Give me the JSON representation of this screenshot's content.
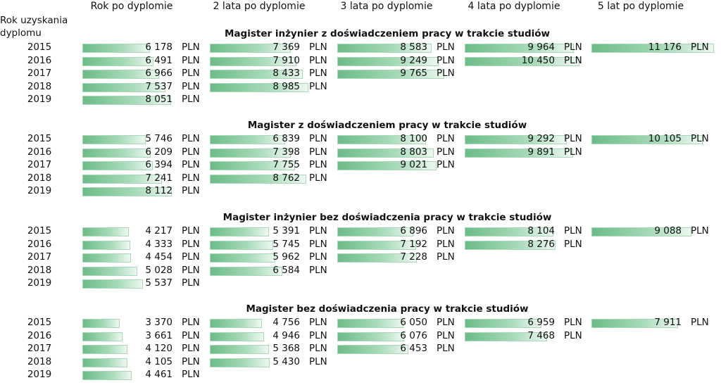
{
  "chart_data": {
    "type": "bar",
    "orientation": "horizontal",
    "row_header": "Rok uzyskania dyplomu",
    "columns": [
      "Rok po dyplomie",
      "2 lata po dyplomie",
      "3 lata po dyplomie",
      "4 lata po dyplomie",
      "5 lat po dyplomie"
    ],
    "years": [
      "2015",
      "2016",
      "2017",
      "2018",
      "2019"
    ],
    "unit": "PLN",
    "bar_color": "#6cbc88",
    "sections": [
      {
        "title": "Magister inżynier z doświadczeniem pracy w trakcie studiów",
        "values": [
          [
            6178,
            7369,
            8583,
            9964,
            11176
          ],
          [
            6491,
            7910,
            9249,
            10450,
            null
          ],
          [
            6966,
            8433,
            9765,
            null,
            null
          ],
          [
            7537,
            8985,
            null,
            null,
            null
          ],
          [
            8051,
            null,
            null,
            null,
            null
          ]
        ]
      },
      {
        "title": "Magister z doświadczeniem pracy w trakcie studiów",
        "values": [
          [
            5746,
            6839,
            8100,
            9292,
            10105
          ],
          [
            6209,
            7398,
            8803,
            9891,
            null
          ],
          [
            6394,
            7755,
            9021,
            null,
            null
          ],
          [
            7241,
            8762,
            null,
            null,
            null
          ],
          [
            8112,
            null,
            null,
            null,
            null
          ]
        ]
      },
      {
        "title": "Magister inżynier bez doświadczenia pracy w trakcie studiów",
        "values": [
          [
            4217,
            5391,
            6896,
            8104,
            9088
          ],
          [
            4333,
            5745,
            7192,
            8276,
            null
          ],
          [
            4454,
            5962,
            7228,
            null,
            null
          ],
          [
            5028,
            6584,
            null,
            null,
            null
          ],
          [
            5537,
            null,
            null,
            null,
            null
          ]
        ]
      },
      {
        "title": "Magister  bez doświadczenia pracy w trakcie studiów",
        "values": [
          [
            3370,
            4756,
            6050,
            6959,
            7911
          ],
          [
            3661,
            4946,
            6076,
            7468,
            null
          ],
          [
            4120,
            5368,
            6453,
            null,
            null
          ],
          [
            4105,
            5430,
            null,
            null,
            null
          ],
          [
            4461,
            null,
            null,
            null,
            null
          ]
        ]
      }
    ]
  }
}
